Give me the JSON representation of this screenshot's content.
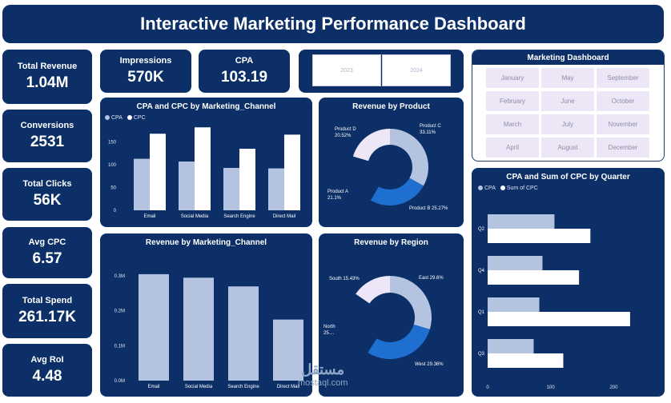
{
  "title": "Interactive Marketing Performance Dashboard",
  "kpis": {
    "total_revenue": {
      "label": "Total Revenue",
      "value": "1.04M"
    },
    "impressions": {
      "label": "Impressions",
      "value": "570K"
    },
    "cpa": {
      "label": "CPA",
      "value": "103.19"
    },
    "conversions": {
      "label": "Conversions",
      "value": "2531"
    },
    "total_clicks": {
      "label": "Total Clicks",
      "value": "56K"
    },
    "avg_cpc": {
      "label": "Avg CPC",
      "value": "6.57"
    },
    "total_spend": {
      "label": "Total Spend",
      "value": "261.17K"
    },
    "avg_roi": {
      "label": "Avg RoI",
      "value": "4.48"
    }
  },
  "year_slicer": [
    "2023",
    "2024"
  ],
  "marketing_dashboard": {
    "title": "Marketing Dashboard",
    "months": [
      "January",
      "May",
      "September",
      "February",
      "June",
      "October",
      "March",
      "July",
      "November",
      "April",
      "August",
      "December"
    ]
  },
  "colors": {
    "card": "#0b2f66",
    "light": "#b4c3e0",
    "white": "#ffffff",
    "mid": "#1f6fd0",
    "pale": "#ece6f6"
  },
  "watermark": {
    "arabic": "مستقل",
    "latin": "mostaql.com"
  },
  "chart_data": [
    {
      "id": "cpa_cpc_channel",
      "type": "bar",
      "title": "CPA and CPC by Marketing_Channel",
      "categories": [
        "Email",
        "Social Media",
        "Search Engine",
        "Direct Mail"
      ],
      "series": [
        {
          "name": "CPA",
          "values": [
            113,
            107,
            93,
            92
          ]
        },
        {
          "name": "CPC",
          "values": [
            168,
            182,
            135,
            166
          ]
        }
      ],
      "yticks": [
        0,
        50,
        100,
        150
      ],
      "ylim": [
        0,
        200
      ]
    },
    {
      "id": "revenue_product",
      "type": "pie",
      "title": "Revenue by Product",
      "slices": [
        {
          "label": "Product C",
          "value": 33.11,
          "text": "Product C",
          "pct": "33.11%"
        },
        {
          "label": "Product B",
          "value": 25.27,
          "text": "Product B 25.27%",
          "pct": ""
        },
        {
          "label": "Product A",
          "value": 21.1,
          "text": "Product A",
          "pct": "21.1%"
        },
        {
          "label": "Product D",
          "value": 20.52,
          "text": "Product D",
          "pct": "20.52%"
        }
      ]
    },
    {
      "id": "revenue_channel",
      "type": "bar",
      "title": "Revenue by Marketing_Channel",
      "categories": [
        "Email",
        "Social Media",
        "Search Engine",
        "Direct Mail"
      ],
      "values": [
        0.305,
        0.295,
        0.27,
        0.175
      ],
      "yticks": [
        "0.0M",
        "0.1M",
        "0.2M",
        "0.3M"
      ],
      "ylim": [
        0,
        0.33
      ]
    },
    {
      "id": "revenue_region",
      "type": "pie",
      "title": "Revenue by Region",
      "slices": [
        {
          "label": "East",
          "value": 29.6,
          "text": "East 29.6%",
          "pct": ""
        },
        {
          "label": "West",
          "value": 29.36,
          "text": "West 29.36%",
          "pct": ""
        },
        {
          "label": "North",
          "value": 25.61,
          "text": "North",
          "pct": "25...."
        },
        {
          "label": "South",
          "value": 15.43,
          "text": "South 15.43%",
          "pct": ""
        }
      ]
    },
    {
      "id": "cpa_cpc_quarter",
      "type": "bar",
      "title": "CPA and Sum of CPC by Quarter",
      "categories": [
        "Q2",
        "Q4",
        "Q1",
        "Q3"
      ],
      "series": [
        {
          "name": "CPA",
          "values": [
            106,
            87,
            82,
            73
          ]
        },
        {
          "name": "Sum of CPC",
          "values": [
            163,
            145,
            226,
            120
          ]
        }
      ],
      "xticks": [
        0,
        100,
        200
      ],
      "xlim": [
        0,
        235
      ]
    }
  ]
}
